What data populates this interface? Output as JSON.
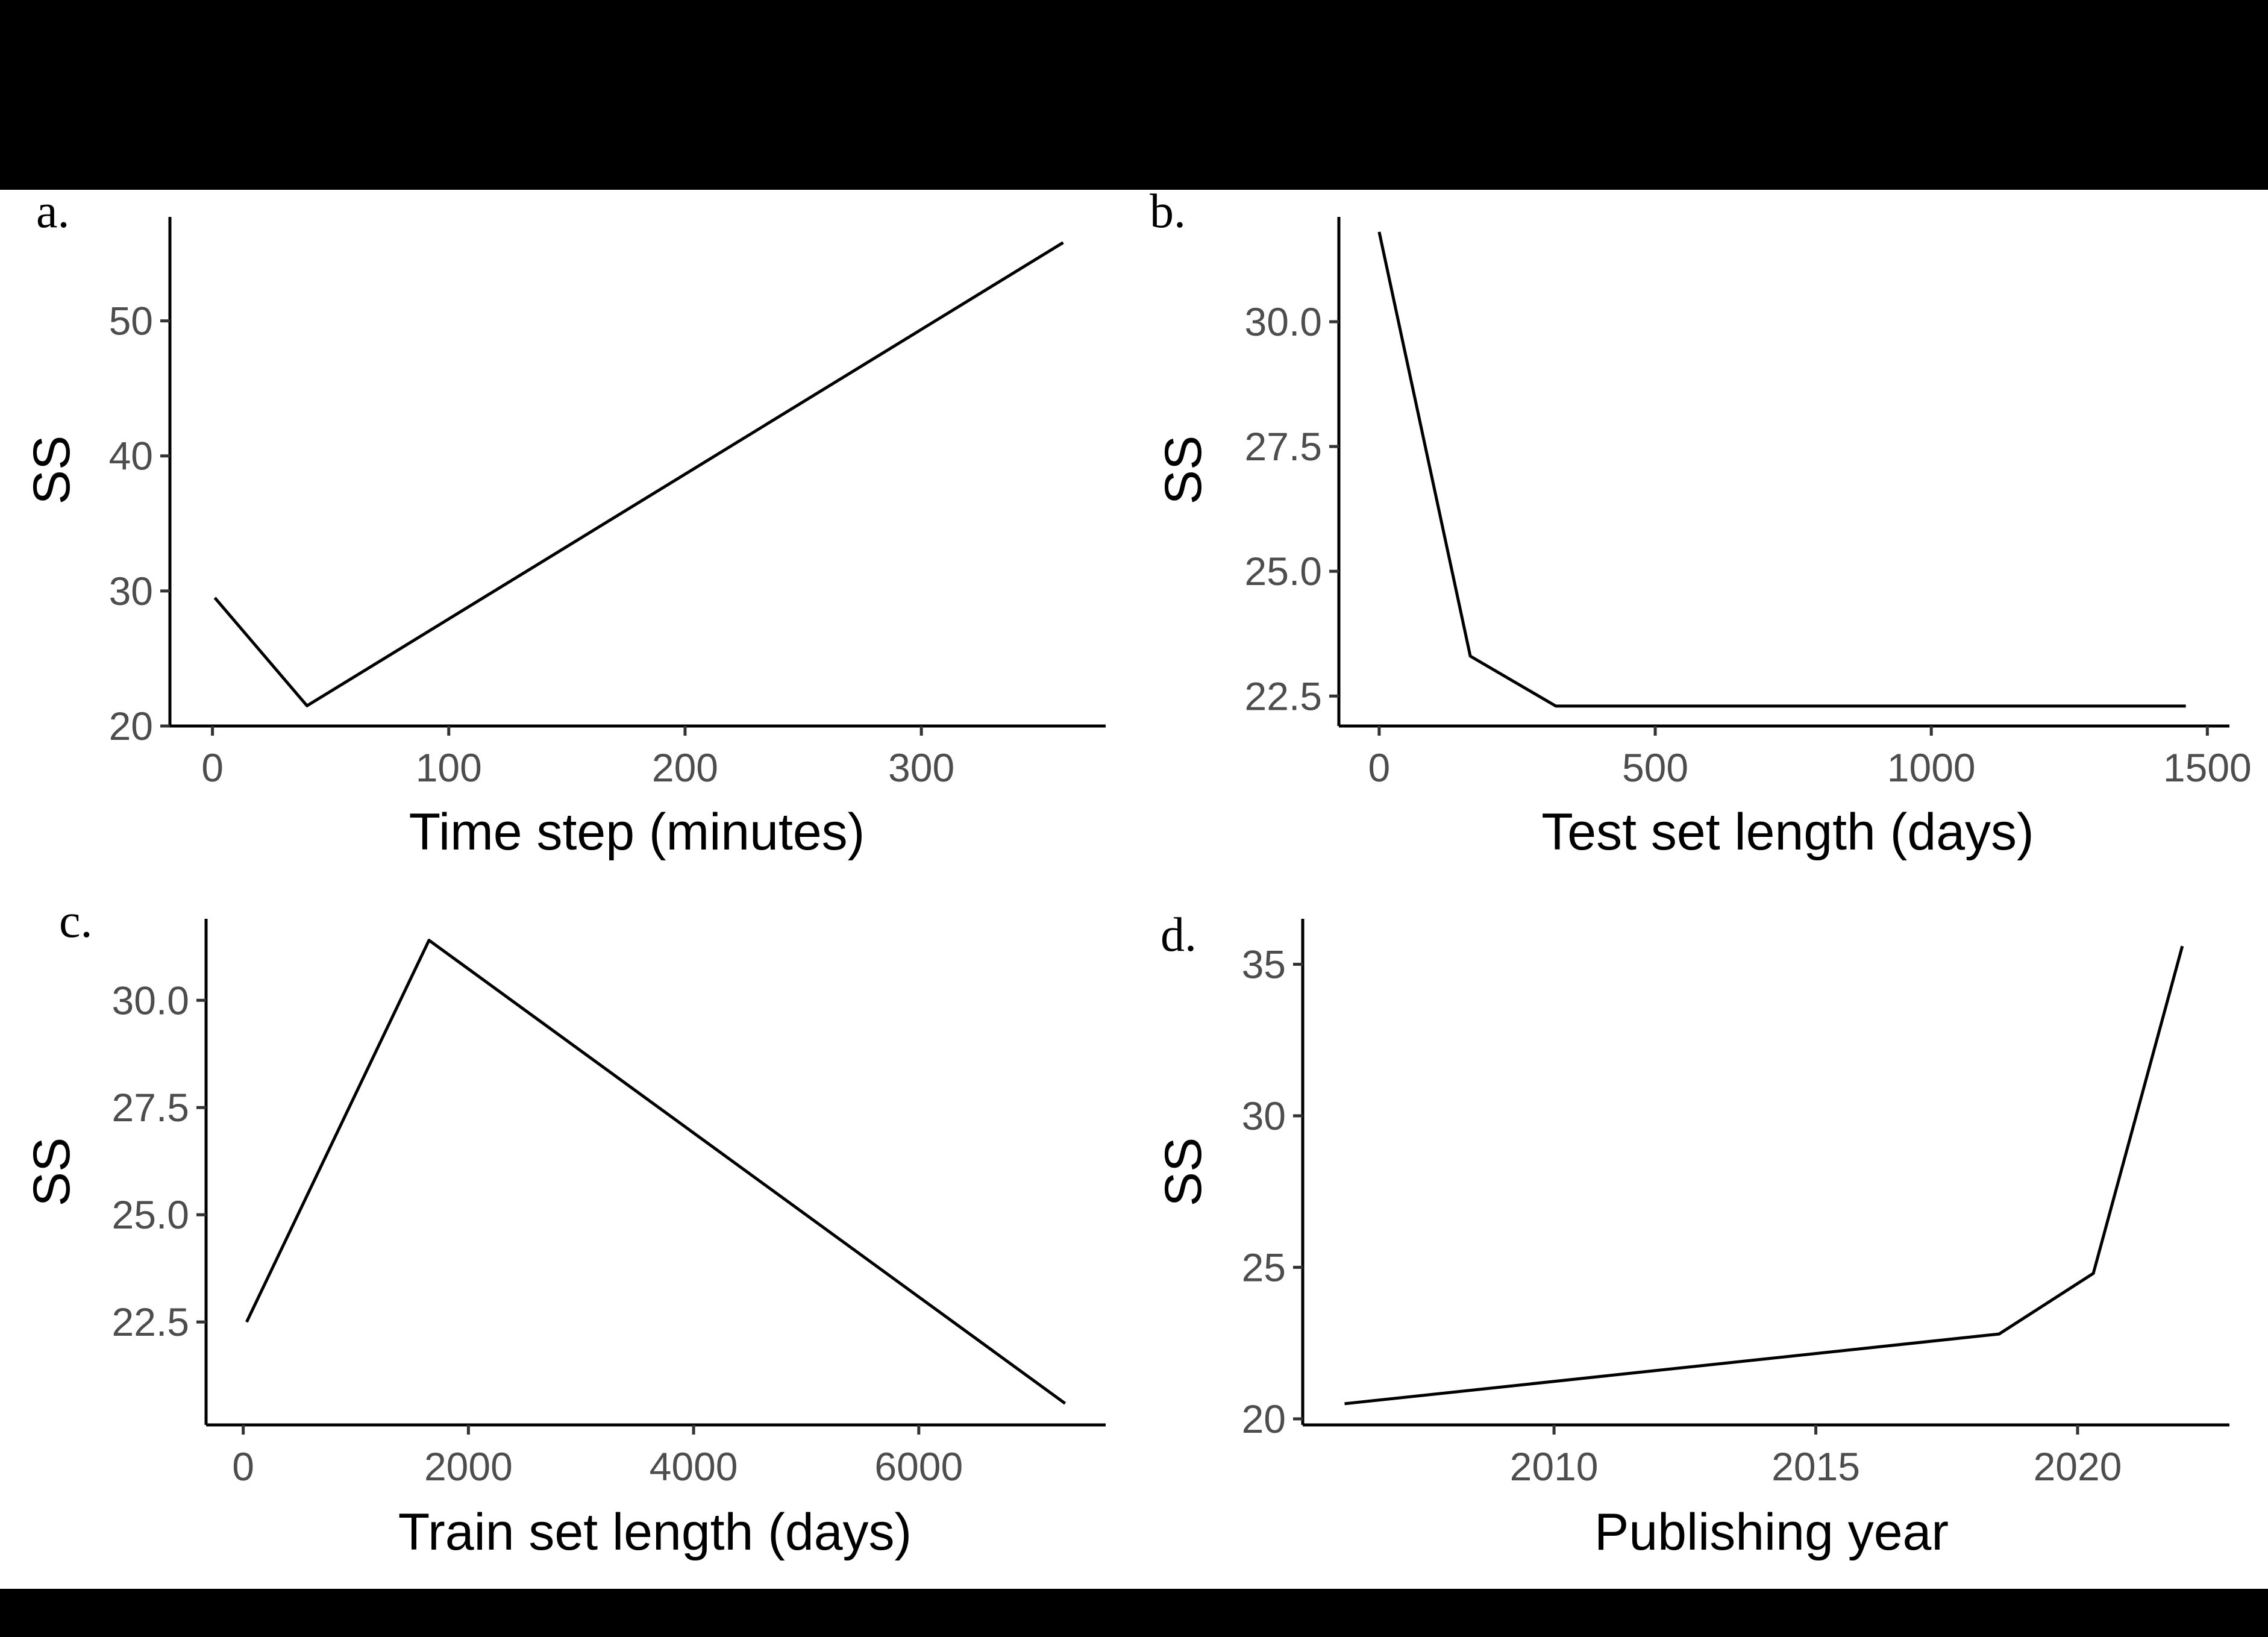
{
  "chart_data": [
    {
      "panel": "a.",
      "type": "line",
      "xlabel": "Time step (minutes)",
      "ylabel": "SS",
      "x": [
        1,
        40,
        360
      ],
      "y": [
        29.5,
        21.5,
        55.8
      ],
      "xlim": [
        -18,
        378
      ],
      "ylim": [
        20,
        57.7
      ],
      "xticks": [
        0,
        100,
        200,
        300
      ],
      "yticks": [
        20,
        30,
        40,
        50
      ],
      "xtick_labels": [
        "0",
        "100",
        "200",
        "300"
      ],
      "ytick_labels": [
        "20",
        "30",
        "40",
        "50"
      ],
      "grid": false
    },
    {
      "panel": "b.",
      "type": "line",
      "xlabel": "Test set length (days)",
      "ylabel": "SS",
      "x": [
        0,
        165,
        320,
        1461
      ],
      "y": [
        31.8,
        23.3,
        22.3,
        22.3
      ],
      "xlim": [
        -73,
        1540
      ],
      "ylim": [
        21.9,
        32.1
      ],
      "xticks": [
        0,
        500,
        1000,
        1500
      ],
      "yticks": [
        22.5,
        25.0,
        27.5,
        30.0
      ],
      "xtick_labels": [
        "0",
        "500",
        "1000",
        "1500"
      ],
      "ytick_labels": [
        "22.5",
        "25.0",
        "27.5",
        "30.0"
      ],
      "grid": false
    },
    {
      "panel": "c.",
      "type": "line",
      "xlabel": "Train set length (days)",
      "ylabel": "SS",
      "x": [
        30,
        1650,
        7300
      ],
      "y": [
        22.5,
        31.4,
        20.6
      ],
      "xlim": [
        -330,
        7660
      ],
      "ylim": [
        20.1,
        31.9
      ],
      "xticks": [
        0,
        2000,
        4000,
        6000
      ],
      "yticks": [
        22.5,
        25.0,
        27.5,
        30.0
      ],
      "xtick_labels": [
        "0",
        "2000",
        "4000",
        "6000"
      ],
      "ytick_labels": [
        "22.5",
        "25.0",
        "27.5",
        "30.0"
      ],
      "grid": false
    },
    {
      "panel": "d.",
      "type": "line",
      "xlabel": "Publishing year",
      "ylabel": "SS",
      "x": [
        2006.0,
        2018.5,
        2020.3,
        2022.0
      ],
      "y": [
        20.5,
        22.8,
        24.8,
        35.6
      ],
      "xlim": [
        2005.2,
        2022.9
      ],
      "ylim": [
        19.8,
        36.5
      ],
      "xticks": [
        2010,
        2015,
        2020
      ],
      "yticks": [
        20,
        25,
        30,
        35
      ],
      "xtick_labels": [
        "2010",
        "2015",
        "2020"
      ],
      "ytick_labels": [
        "20",
        "25",
        "30",
        "35"
      ],
      "grid": false
    }
  ]
}
